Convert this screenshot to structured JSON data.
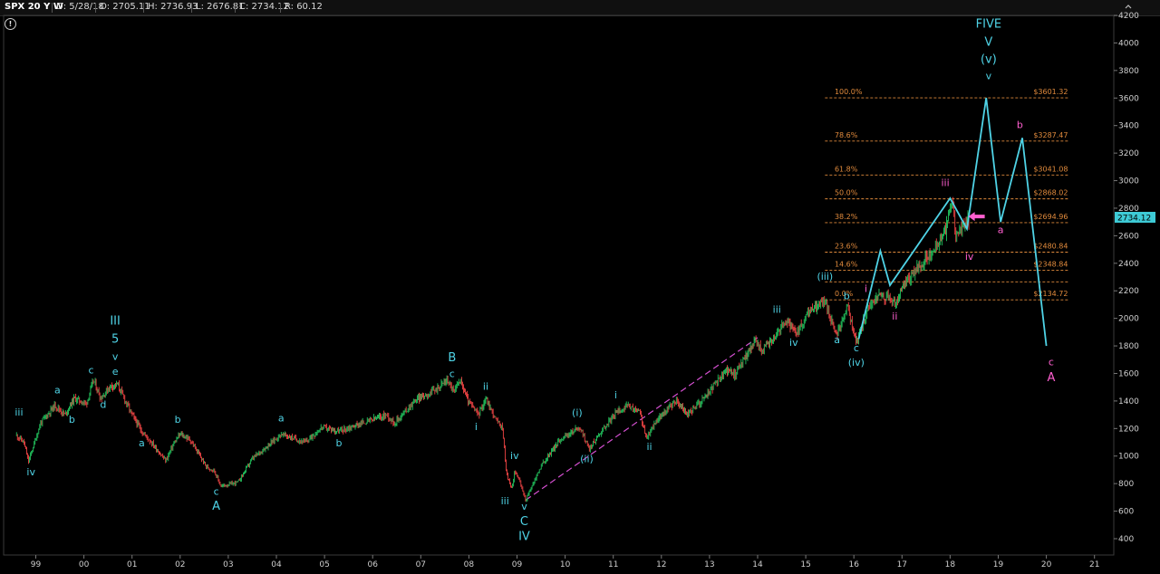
{
  "header": {
    "symbol": "SPX 20 Y W",
    "date": "D: 5/28/18",
    "open": "O: 2705.11",
    "high": "H: 2736.93",
    "low": "L: 2676.81",
    "close": "C: 2734.12",
    "range": "R: 60.12"
  },
  "info_icon_label": "!",
  "colors": {
    "background": "#000000",
    "up_bar": "#22c55e",
    "down_bar": "#ef4444",
    "wave_cyan": "#4fd3e6",
    "wave_magenta": "#ff5fd0",
    "fib_orange": "#e08a3c",
    "price_tag": "#3ecbd6"
  },
  "chart_data": {
    "type": "line",
    "x_ticks": [
      "99",
      "00",
      "01",
      "02",
      "03",
      "04",
      "05",
      "06",
      "07",
      "08",
      "09",
      "10",
      "11",
      "12",
      "13",
      "14",
      "15",
      "16",
      "17",
      "18",
      "19",
      "20",
      "21"
    ],
    "y_ticks": [
      "400",
      "600",
      "800",
      "1000",
      "1200",
      "1400",
      "1600",
      "1800",
      "2000",
      "2200",
      "2400",
      "2600",
      "2800",
      "3000",
      "3200",
      "3400",
      "3600",
      "3800",
      "4000",
      "4200"
    ],
    "ylim": [
      300,
      4250
    ],
    "last_price_label": "2734.12",
    "price_anchors": [
      {
        "x": 1998.6,
        "y": 1150
      },
      {
        "x": 1998.75,
        "y": 1100
      },
      {
        "x": 1998.85,
        "y": 960
      },
      {
        "x": 1999.1,
        "y": 1240
      },
      {
        "x": 1999.4,
        "y": 1370
      },
      {
        "x": 1999.6,
        "y": 1300
      },
      {
        "x": 1999.8,
        "y": 1420
      },
      {
        "x": 2000.05,
        "y": 1380
      },
      {
        "x": 2000.2,
        "y": 1550
      },
      {
        "x": 2000.35,
        "y": 1420
      },
      {
        "x": 2000.55,
        "y": 1510
      },
      {
        "x": 2000.7,
        "y": 1520
      },
      {
        "x": 2001.0,
        "y": 1300
      },
      {
        "x": 2001.2,
        "y": 1180
      },
      {
        "x": 2001.4,
        "y": 1100
      },
      {
        "x": 2001.7,
        "y": 965
      },
      {
        "x": 2001.85,
        "y": 1080
      },
      {
        "x": 2002.0,
        "y": 1160
      },
      {
        "x": 2002.2,
        "y": 1120
      },
      {
        "x": 2002.55,
        "y": 920
      },
      {
        "x": 2002.7,
        "y": 900
      },
      {
        "x": 2002.85,
        "y": 780
      },
      {
        "x": 2003.2,
        "y": 810
      },
      {
        "x": 2003.5,
        "y": 980
      },
      {
        "x": 2003.9,
        "y": 1100
      },
      {
        "x": 2004.1,
        "y": 1160
      },
      {
        "x": 2004.6,
        "y": 1100
      },
      {
        "x": 2004.95,
        "y": 1210
      },
      {
        "x": 2005.3,
        "y": 1180
      },
      {
        "x": 2005.7,
        "y": 1230
      },
      {
        "x": 2006.3,
        "y": 1300
      },
      {
        "x": 2006.45,
        "y": 1240
      },
      {
        "x": 2006.9,
        "y": 1410
      },
      {
        "x": 2007.3,
        "y": 1480
      },
      {
        "x": 2007.55,
        "y": 1555
      },
      {
        "x": 2007.7,
        "y": 1460
      },
      {
        "x": 2007.8,
        "y": 1565
      },
      {
        "x": 2008.0,
        "y": 1390
      },
      {
        "x": 2008.2,
        "y": 1300
      },
      {
        "x": 2008.35,
        "y": 1420
      },
      {
        "x": 2008.55,
        "y": 1270
      },
      {
        "x": 2008.7,
        "y": 1200
      },
      {
        "x": 2008.78,
        "y": 870
      },
      {
        "x": 2008.9,
        "y": 760
      },
      {
        "x": 2008.95,
        "y": 900
      },
      {
        "x": 2009.05,
        "y": 820
      },
      {
        "x": 2009.18,
        "y": 680
      },
      {
        "x": 2009.5,
        "y": 930
      },
      {
        "x": 2009.9,
        "y": 1120
      },
      {
        "x": 2010.3,
        "y": 1210
      },
      {
        "x": 2010.5,
        "y": 1050
      },
      {
        "x": 2010.75,
        "y": 1180
      },
      {
        "x": 2011.1,
        "y": 1330
      },
      {
        "x": 2011.3,
        "y": 1360
      },
      {
        "x": 2011.55,
        "y": 1320
      },
      {
        "x": 2011.7,
        "y": 1120
      },
      {
        "x": 2011.85,
        "y": 1240
      },
      {
        "x": 2012.3,
        "y": 1400
      },
      {
        "x": 2012.55,
        "y": 1300
      },
      {
        "x": 2012.9,
        "y": 1430
      },
      {
        "x": 2013.4,
        "y": 1640
      },
      {
        "x": 2013.5,
        "y": 1580
      },
      {
        "x": 2013.95,
        "y": 1840
      },
      {
        "x": 2014.1,
        "y": 1760
      },
      {
        "x": 2014.6,
        "y": 1980
      },
      {
        "x": 2014.8,
        "y": 1880
      },
      {
        "x": 2015.1,
        "y": 2060
      },
      {
        "x": 2015.4,
        "y": 2130
      },
      {
        "x": 2015.65,
        "y": 1870
      },
      {
        "x": 2015.85,
        "y": 2100
      },
      {
        "x": 2016.05,
        "y": 1830
      },
      {
        "x": 2016.3,
        "y": 2070
      },
      {
        "x": 2016.5,
        "y": 2170
      },
      {
        "x": 2016.75,
        "y": 2150
      },
      {
        "x": 2016.85,
        "y": 2090
      },
      {
        "x": 2017.1,
        "y": 2280
      },
      {
        "x": 2017.5,
        "y": 2430
      },
      {
        "x": 2017.9,
        "y": 2620
      },
      {
        "x": 2018.05,
        "y": 2872
      },
      {
        "x": 2018.12,
        "y": 2590
      },
      {
        "x": 2018.3,
        "y": 2680
      },
      {
        "x": 2018.4,
        "y": 2734
      }
    ],
    "projection_path": [
      {
        "x": 2016.1,
        "y": 1850
      },
      {
        "x": 2016.55,
        "y": 2490
      },
      {
        "x": 2016.75,
        "y": 2240
      },
      {
        "x": 2018.0,
        "y": 2872
      },
      {
        "x": 2018.35,
        "y": 2650
      },
      {
        "x": 2018.75,
        "y": 3601
      },
      {
        "x": 2019.05,
        "y": 2700
      },
      {
        "x": 2019.5,
        "y": 3310
      },
      {
        "x": 2020.0,
        "y": 1800
      }
    ],
    "trendline": [
      {
        "x": 2009.18,
        "y": 680
      },
      {
        "x": 2014.0,
        "y": 1860
      }
    ],
    "fib_levels": [
      {
        "pct": "100.0%",
        "price": "$3601.32",
        "value": 3601.32
      },
      {
        "pct": "78.6%",
        "price": "$3287.47",
        "value": 3287.47
      },
      {
        "pct": "61.8%",
        "price": "$3041.08",
        "value": 3041.08
      },
      {
        "pct": "50.0%",
        "price": "$2868.02",
        "value": 2868.02
      },
      {
        "pct": "38.2%",
        "price": "$2694.96",
        "value": 2694.96
      },
      {
        "pct": "23.6%",
        "price": "$2480.84",
        "value": 2480.84
      },
      {
        "pct": "14.6%",
        "price": "$2348.84",
        "value": 2348.84
      },
      {
        "pct": "0.0%",
        "price": "$2134.72",
        "value": 2134.72
      }
    ],
    "fib_extra_level": 2265,
    "wave_labels": [
      {
        "text": "iii",
        "x": 1998.65,
        "y": 1295,
        "color": "cyan"
      },
      {
        "text": "iv",
        "x": 1998.9,
        "y": 860,
        "color": "cyan"
      },
      {
        "text": "a",
        "x": 1999.45,
        "y": 1455,
        "color": "cyan"
      },
      {
        "text": "b",
        "x": 1999.75,
        "y": 1240,
        "color": "cyan"
      },
      {
        "text": "c",
        "x": 2000.15,
        "y": 1600,
        "color": "cyan"
      },
      {
        "text": "d",
        "x": 2000.4,
        "y": 1350,
        "color": "cyan"
      },
      {
        "text": "III",
        "x": 2000.65,
        "y": 1955,
        "color": "cyan"
      },
      {
        "text": "5",
        "x": 2000.65,
        "y": 1825,
        "color": "cyan"
      },
      {
        "text": "v",
        "x": 2000.65,
        "y": 1700,
        "color": "cyan"
      },
      {
        "text": "e",
        "x": 2000.65,
        "y": 1590,
        "color": "cyan"
      },
      {
        "text": "a",
        "x": 2001.2,
        "y": 1070,
        "color": "cyan"
      },
      {
        "text": "b",
        "x": 2001.95,
        "y": 1240,
        "color": "cyan"
      },
      {
        "text": "c",
        "x": 2002.75,
        "y": 720,
        "color": "cyan"
      },
      {
        "text": "A",
        "x": 2002.75,
        "y": 610,
        "color": "cyan"
      },
      {
        "text": "a",
        "x": 2004.1,
        "y": 1250,
        "color": "cyan"
      },
      {
        "text": "b",
        "x": 2005.3,
        "y": 1070,
        "color": "cyan"
      },
      {
        "text": "B",
        "x": 2007.65,
        "y": 1690,
        "color": "cyan"
      },
      {
        "text": "c",
        "x": 2007.65,
        "y": 1575,
        "color": "cyan"
      },
      {
        "text": "ii",
        "x": 2008.35,
        "y": 1480,
        "color": "cyan"
      },
      {
        "text": "i",
        "x": 2008.15,
        "y": 1190,
        "color": "cyan"
      },
      {
        "text": "iv",
        "x": 2008.95,
        "y": 980,
        "color": "cyan"
      },
      {
        "text": "iii",
        "x": 2008.75,
        "y": 650,
        "color": "cyan"
      },
      {
        "text": "v",
        "x": 2009.15,
        "y": 610,
        "color": "cyan"
      },
      {
        "text": "C",
        "x": 2009.15,
        "y": 500,
        "color": "cyan"
      },
      {
        "text": "IV",
        "x": 2009.15,
        "y": 390,
        "color": "cyan"
      },
      {
        "text": "(i)",
        "x": 2010.25,
        "y": 1290,
        "color": "cyan"
      },
      {
        "text": "(ii)",
        "x": 2010.45,
        "y": 955,
        "color": "cyan"
      },
      {
        "text": "i",
        "x": 2011.05,
        "y": 1420,
        "color": "cyan"
      },
      {
        "text": "ii",
        "x": 2011.75,
        "y": 1045,
        "color": "cyan"
      },
      {
        "text": "iii",
        "x": 2014.4,
        "y": 2040,
        "color": "cyan"
      },
      {
        "text": "iv",
        "x": 2014.75,
        "y": 1800,
        "color": "cyan"
      },
      {
        "text": "(iii)",
        "x": 2015.4,
        "y": 2280,
        "color": "cyan"
      },
      {
        "text": "a",
        "x": 2015.65,
        "y": 1820,
        "color": "cyan"
      },
      {
        "text": "b",
        "x": 2015.85,
        "y": 2140,
        "color": "cyan"
      },
      {
        "text": "c",
        "x": 2016.05,
        "y": 1760,
        "color": "cyan"
      },
      {
        "text": "(iv)",
        "x": 2016.05,
        "y": 1655,
        "color": "cyan"
      },
      {
        "text": "FIVE",
        "x": 2018.8,
        "y": 4110,
        "color": "cyan"
      },
      {
        "text": "V",
        "x": 2018.8,
        "y": 3980,
        "color": "cyan"
      },
      {
        "text": "(v)",
        "x": 2018.8,
        "y": 3855,
        "color": "cyan"
      },
      {
        "text": "v",
        "x": 2018.8,
        "y": 3735,
        "color": "cyan"
      },
      {
        "text": "i",
        "x": 2016.25,
        "y": 2190,
        "color": "magenta"
      },
      {
        "text": "ii",
        "x": 2016.85,
        "y": 1990,
        "color": "magenta"
      },
      {
        "text": "iii",
        "x": 2017.9,
        "y": 2960,
        "color": "magenta"
      },
      {
        "text": "iv",
        "x": 2018.4,
        "y": 2425,
        "color": "magenta"
      },
      {
        "text": "a",
        "x": 2019.05,
        "y": 2620,
        "color": "magenta"
      },
      {
        "text": "b",
        "x": 2019.45,
        "y": 3380,
        "color": "magenta"
      },
      {
        "text": "c",
        "x": 2020.1,
        "y": 1660,
        "color": "magenta"
      },
      {
        "text": "A",
        "x": 2020.1,
        "y": 1545,
        "color": "magenta"
      }
    ]
  }
}
